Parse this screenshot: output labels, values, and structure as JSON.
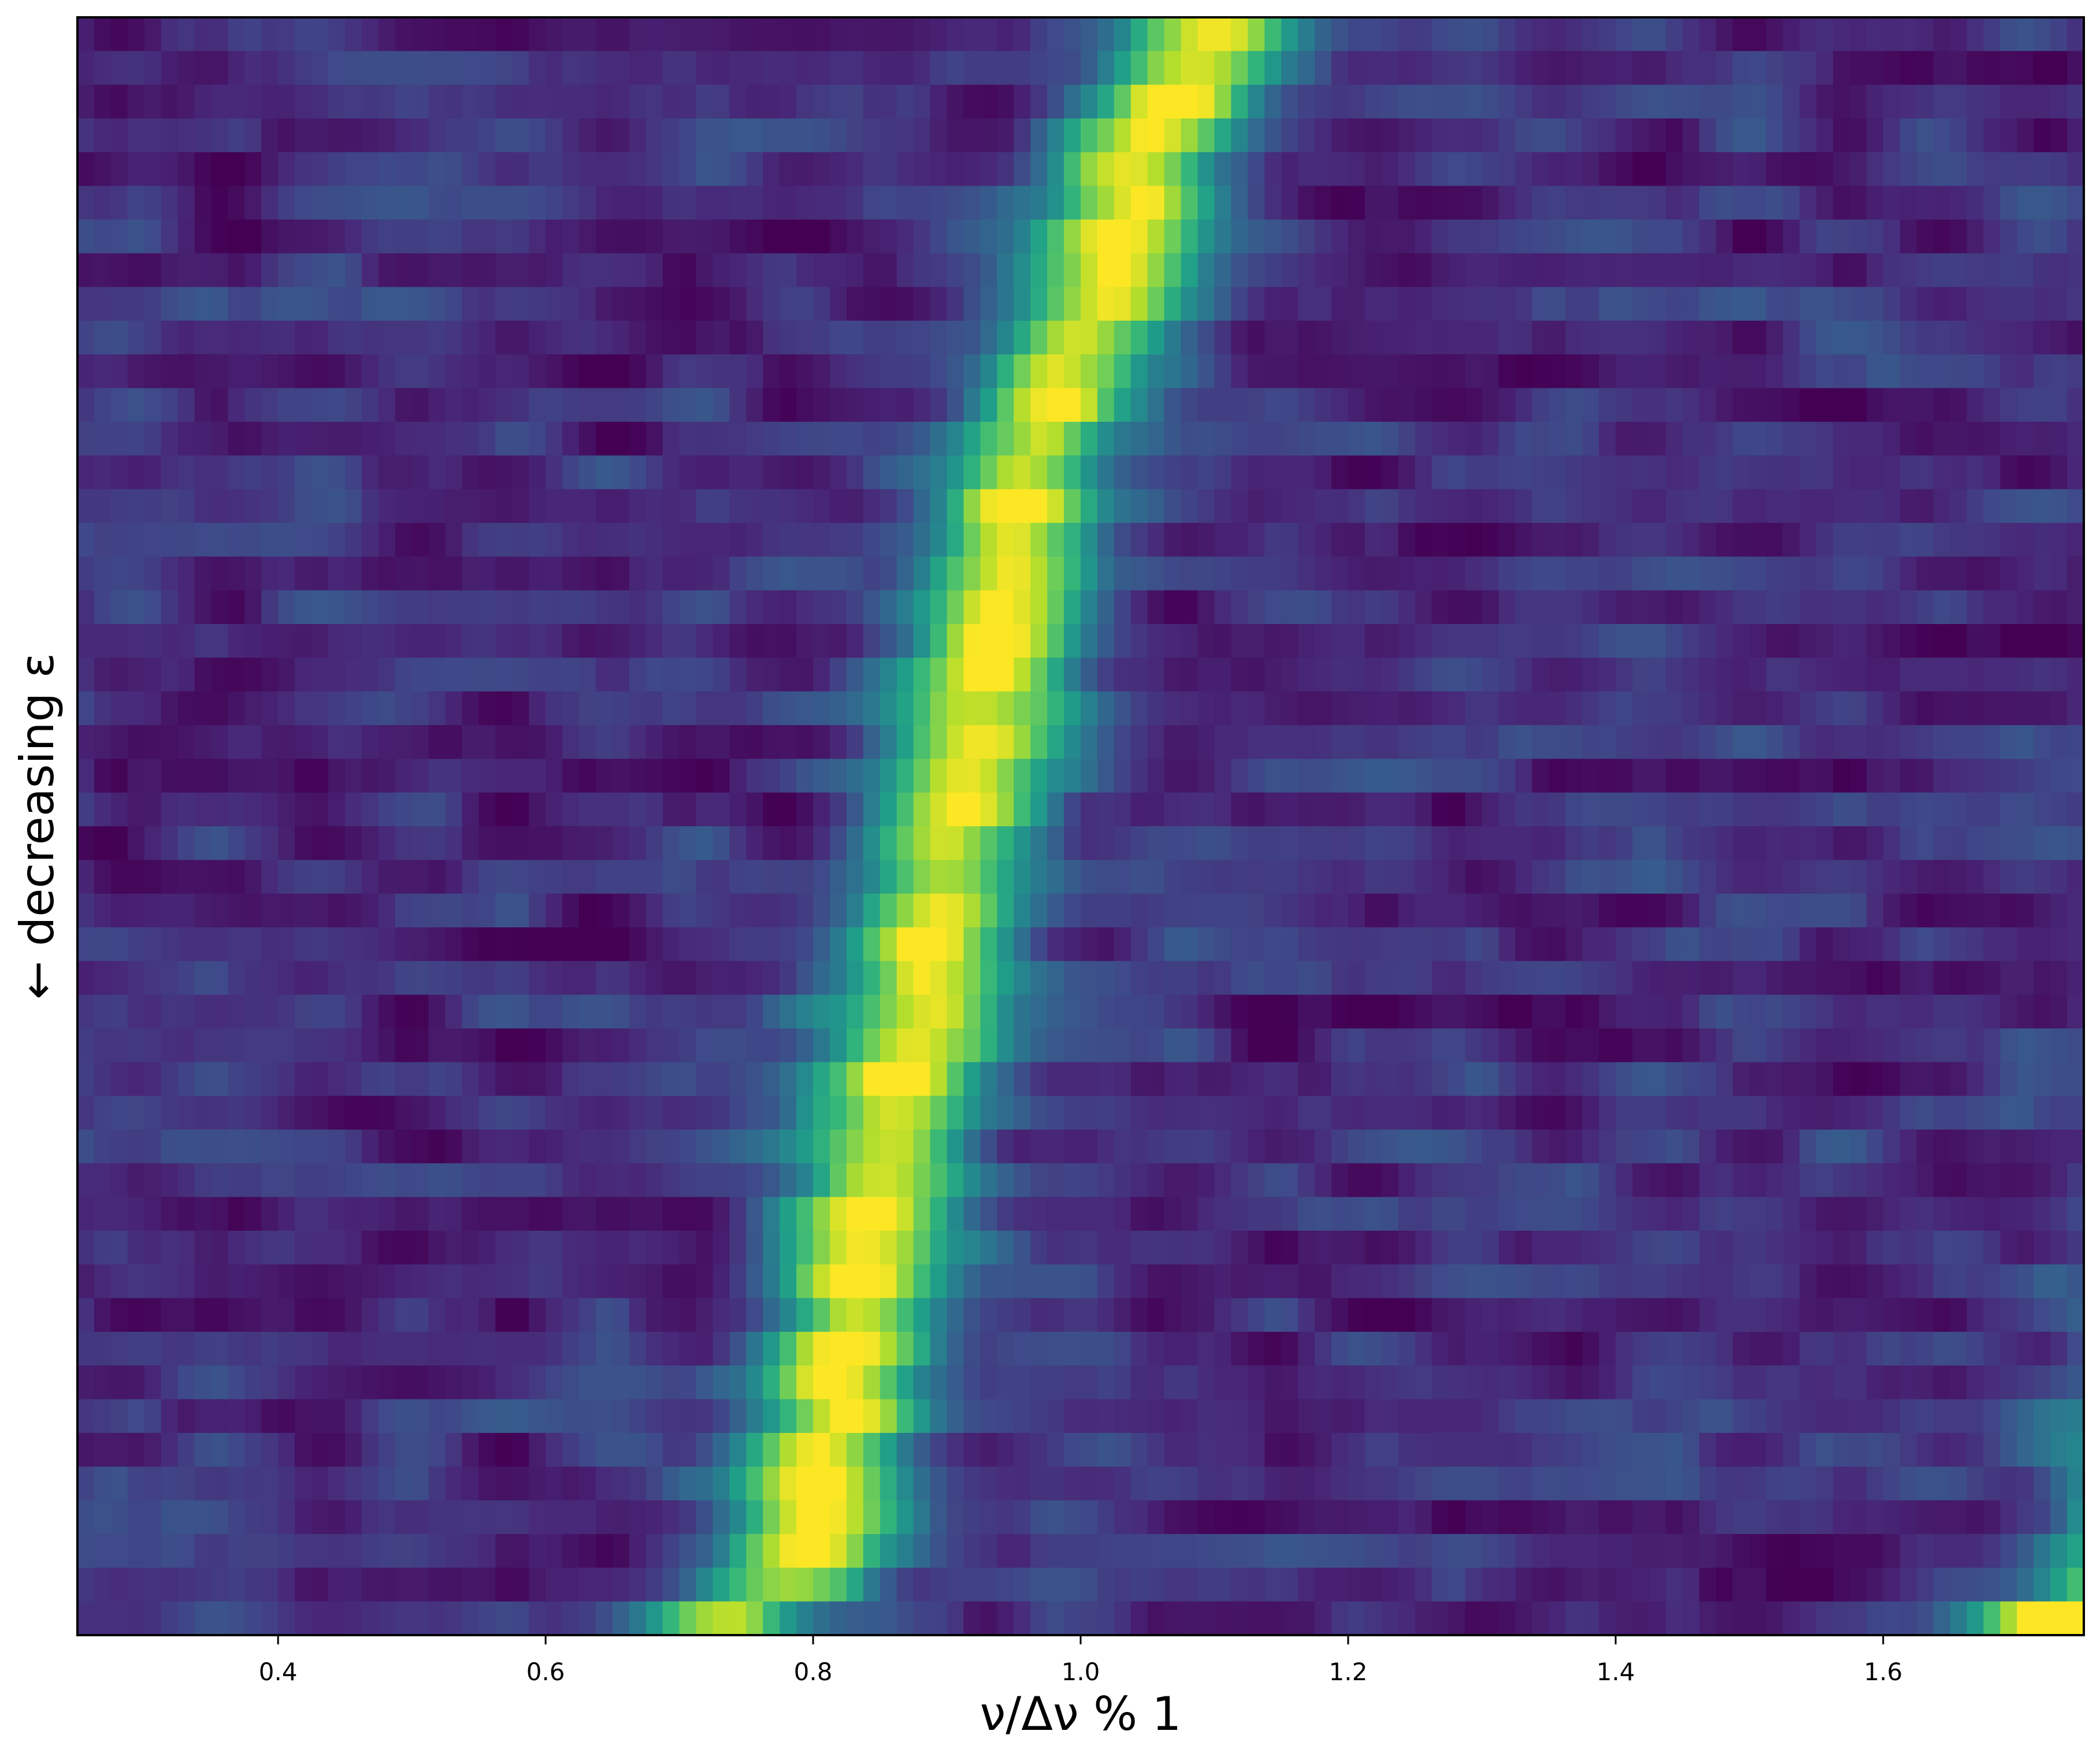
{
  "chart_data": {
    "type": "heatmap",
    "title": "",
    "xlabel": "ν/Δν % 1",
    "ylabel": "← decreasing ε",
    "xlim": [
      0.25,
      1.75
    ],
    "x_ticks": [
      0.4,
      0.6,
      0.8,
      1.0,
      1.2,
      1.4,
      1.6
    ],
    "x_tick_labels": [
      "0.4",
      "0.6",
      "0.8",
      "1.0",
      "1.2",
      "1.4",
      "1.6"
    ],
    "y_ticks_shown": false,
    "grid": false,
    "colormap": "viridis",
    "colorbar": false,
    "n_rows": 48,
    "ridge_note": "bright ridge runs from about 0.73 (bottom row) to about 1.10 (top row), repeated one unit to the right",
    "ridge_center_by_row_top_to_bottom": [
      1.1,
      1.086,
      1.072,
      1.058,
      1.044,
      1.036,
      1.03,
      1.024,
      1.018,
      0.999,
      0.985,
      0.975,
      0.967,
      0.961,
      0.956,
      0.951,
      0.946,
      0.941,
      0.936,
      0.932,
      0.928,
      0.923,
      0.918,
      0.912,
      0.906,
      0.899,
      0.893,
      0.887,
      0.881,
      0.876,
      0.872,
      0.867,
      0.862,
      0.857,
      0.851,
      0.846,
      0.841,
      0.836,
      0.831,
      0.826,
      0.821,
      0.816,
      0.811,
      0.806,
      0.801,
      0.797,
      0.785,
      0.73
    ]
  },
  "colors": {
    "background": "#ffffff",
    "axes_frame": "#000000",
    "text": "#000000"
  }
}
